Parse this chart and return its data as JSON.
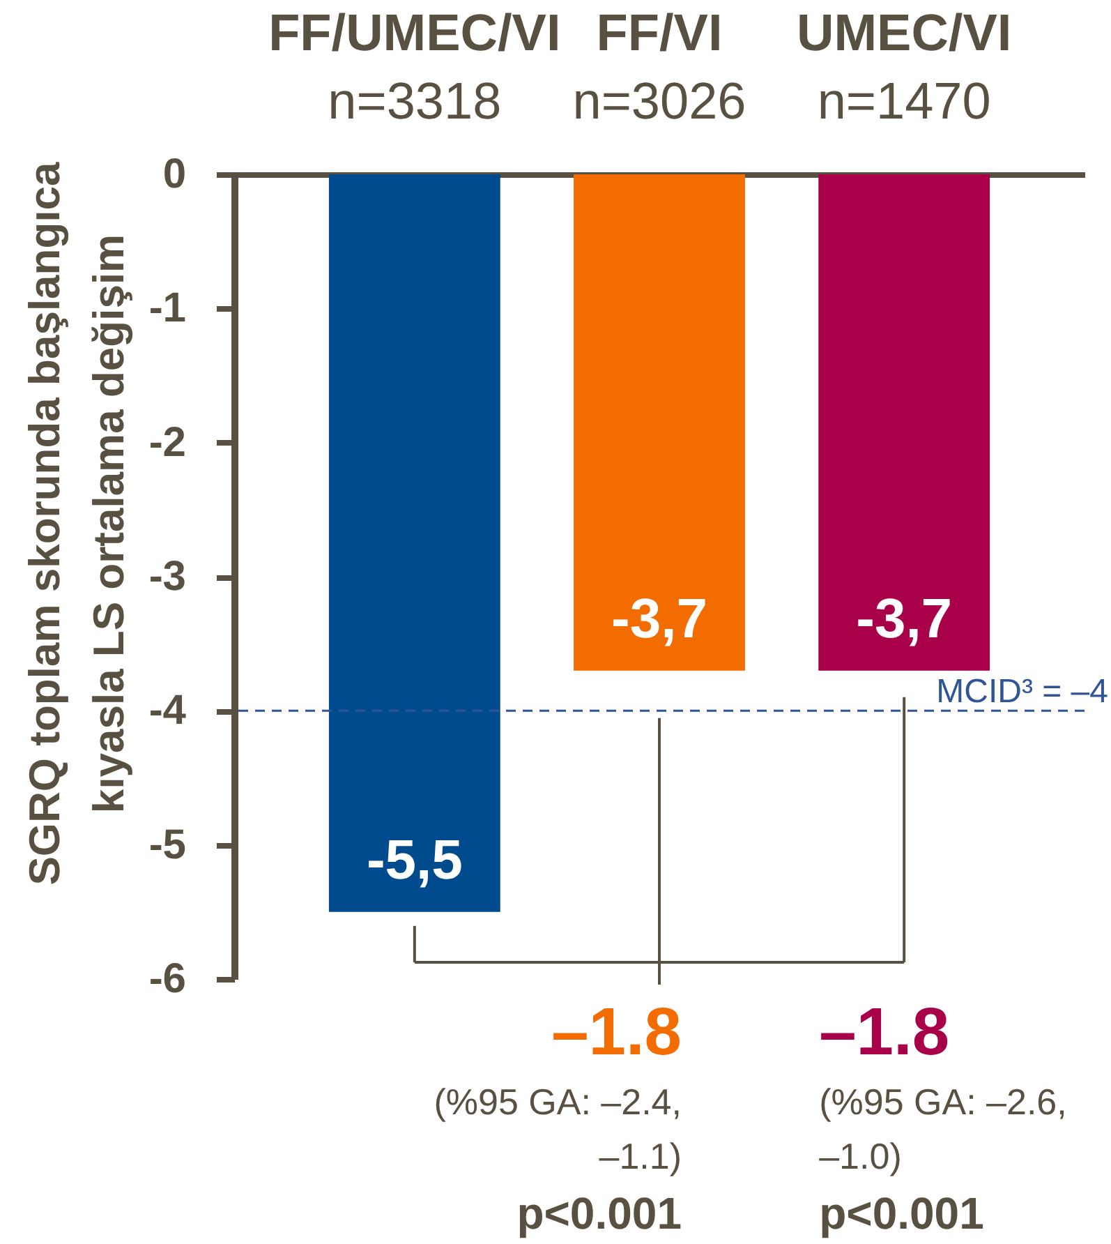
{
  "chart_data": {
    "type": "bar",
    "categories": [
      "FF/UMEC/VI\nn=3318",
      "FF/VI\nn=3026",
      "UMEC/VI\nn=1470"
    ],
    "values": [
      -5.5,
      -3.7,
      -3.7
    ],
    "colors": [
      "#004b8d",
      "#f36c00",
      "#a9004a"
    ],
    "value_labels": [
      "-5,5",
      "-3,7",
      "-3,7"
    ],
    "ylabel": "SGRQ toplam skorunda başlangıca kıyasla LS ortalama değişim",
    "ylim": [
      -6,
      0
    ],
    "yticks": [
      0,
      -1,
      -2,
      -3,
      -4,
      -5,
      -6
    ],
    "ref_lines": [
      {
        "axis": "y",
        "value": -4,
        "label": "MCID³ = –4",
        "color": "#2f5597",
        "line_style": "dashed"
      }
    ],
    "annotations": [
      "–1.8",
      "(%95 GA: –2.4, –1.1)",
      "p<0.001",
      "–1.8",
      "(%95 GA: –2.6, –1.0)",
      "p<0.001"
    ]
  }
}
